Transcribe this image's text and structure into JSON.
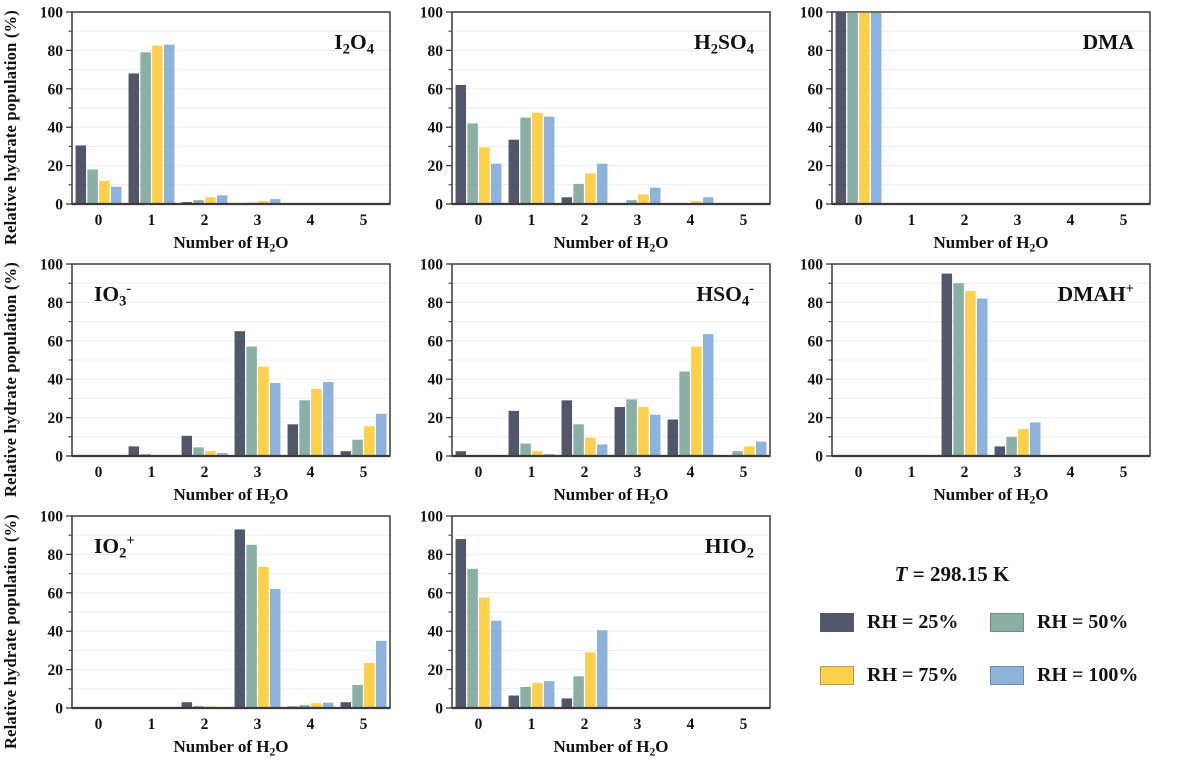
{
  "figure": {
    "ylabel": "Relative hydrate population (%)",
    "xlabel_parts": [
      {
        "t": "Number of H"
      },
      {
        "t": "2",
        "s": "sub"
      },
      {
        "t": "O"
      }
    ],
    "yticks": [
      0,
      20,
      40,
      60,
      80,
      100
    ],
    "grid_step": 10,
    "colors": {
      "rh25": "#52566A",
      "rh50": "#89AFA7",
      "rh75": "#FDD04A",
      "rh100": "#8DB2DC",
      "frame": "#3a3a3a",
      "grid": "#ededed"
    }
  },
  "legend": {
    "temperature_parts": [
      {
        "t": "T",
        "s": "i"
      },
      {
        "t": " = 298.15 K"
      }
    ],
    "entries": [
      {
        "label": "RH = 25%",
        "color": "#52566A"
      },
      {
        "label": "RH = 50%",
        "color": "#89AFA7"
      },
      {
        "label": "RH = 75%",
        "color": "#FDD04A"
      },
      {
        "label": "RH = 100%",
        "color": "#8DB2DC"
      }
    ]
  },
  "chart_data": [
    {
      "type": "bar",
      "name": "I2O4",
      "title_parts": [
        {
          "t": "I"
        },
        {
          "t": "2",
          "s": "sub"
        },
        {
          "t": "O"
        },
        {
          "t": "4",
          "s": "sub"
        }
      ],
      "title_pos": "right",
      "categories": [
        "0",
        "1",
        "2",
        "3",
        "4",
        "5"
      ],
      "xlabel": "Number of H2O",
      "ylabel": "Relative hydrate population (%)",
      "ylim": [
        0,
        100
      ],
      "series": [
        {
          "name": "RH = 25%",
          "values": [
            30.5,
            68,
            1,
            0.4,
            0,
            0
          ]
        },
        {
          "name": "RH = 50%",
          "values": [
            18,
            79,
            2,
            0.7,
            0,
            0
          ]
        },
        {
          "name": "RH = 75%",
          "values": [
            12,
            82.5,
            3.5,
            1.5,
            0,
            0
          ]
        },
        {
          "name": "RH = 100%",
          "values": [
            9,
            83,
            4.5,
            2.5,
            0,
            0
          ]
        }
      ]
    },
    {
      "type": "bar",
      "name": "H2SO4",
      "title_parts": [
        {
          "t": "H"
        },
        {
          "t": "2",
          "s": "sub"
        },
        {
          "t": "SO"
        },
        {
          "t": "4",
          "s": "sub"
        }
      ],
      "title_pos": "right",
      "categories": [
        "0",
        "1",
        "2",
        "3",
        "4",
        "5"
      ],
      "xlabel": "Number of H2O",
      "ylabel": "Relative hydrate population (%)",
      "ylim": [
        0,
        100
      ],
      "series": [
        {
          "name": "RH = 25%",
          "values": [
            62,
            33.5,
            3.5,
            0.3,
            0.3,
            0
          ]
        },
        {
          "name": "RH = 50%",
          "values": [
            42,
            45,
            10.5,
            2,
            0.5,
            0
          ]
        },
        {
          "name": "RH = 75%",
          "values": [
            29.5,
            47.5,
            16,
            5,
            1.5,
            0
          ]
        },
        {
          "name": "RH = 100%",
          "values": [
            21,
            45.5,
            21,
            8.5,
            3.5,
            0
          ]
        }
      ]
    },
    {
      "type": "bar",
      "name": "DMA",
      "title_parts": [
        {
          "t": "DMA"
        }
      ],
      "title_pos": "right",
      "categories": [
        "0",
        "1",
        "2",
        "3",
        "4",
        "5"
      ],
      "xlabel": "Number of H2O",
      "ylabel": "Relative hydrate population (%)",
      "ylim": [
        0,
        100
      ],
      "series": [
        {
          "name": "RH = 25%",
          "values": [
            100,
            0,
            0,
            0,
            0,
            0
          ]
        },
        {
          "name": "RH = 50%",
          "values": [
            99.8,
            0.2,
            0,
            0,
            0,
            0
          ]
        },
        {
          "name": "RH = 75%",
          "values": [
            99.7,
            0.3,
            0,
            0,
            0,
            0
          ]
        },
        {
          "name": "RH = 100%",
          "values": [
            99.5,
            0.5,
            0,
            0,
            0,
            0
          ]
        }
      ]
    },
    {
      "type": "bar",
      "name": "IO3-",
      "title_parts": [
        {
          "t": "IO"
        },
        {
          "t": "3",
          "s": "sub"
        },
        {
          "t": "-",
          "s": "sup"
        }
      ],
      "title_pos": "left",
      "categories": [
        "0",
        "1",
        "2",
        "3",
        "4",
        "5"
      ],
      "xlabel": "Number of H2O",
      "ylabel": "Relative hydrate population (%)",
      "ylim": [
        0,
        100
      ],
      "series": [
        {
          "name": "RH = 25%",
          "values": [
            0,
            5,
            10.5,
            65,
            16.5,
            2.5
          ]
        },
        {
          "name": "RH = 50%",
          "values": [
            0,
            1,
            4.5,
            57,
            29,
            8.5
          ]
        },
        {
          "name": "RH = 75%",
          "values": [
            0,
            0.3,
            2.5,
            46.5,
            35,
            15.5
          ]
        },
        {
          "name": "RH = 100%",
          "values": [
            0,
            0,
            1.5,
            38,
            38.5,
            22
          ]
        }
      ]
    },
    {
      "type": "bar",
      "name": "HSO4-",
      "title_parts": [
        {
          "t": "HSO"
        },
        {
          "t": "4",
          "s": "sub"
        },
        {
          "t": "-",
          "s": "sup"
        }
      ],
      "title_pos": "right",
      "categories": [
        "0",
        "1",
        "2",
        "3",
        "4",
        "5"
      ],
      "xlabel": "Number of H2O",
      "ylabel": "Relative hydrate population (%)",
      "ylim": [
        0,
        100
      ],
      "series": [
        {
          "name": "RH = 25%",
          "values": [
            2.5,
            23.5,
            29,
            25.5,
            19,
            0.5
          ]
        },
        {
          "name": "RH = 50%",
          "values": [
            0,
            6.5,
            16.5,
            29.5,
            44,
            2.5
          ]
        },
        {
          "name": "RH = 75%",
          "values": [
            0,
            2.5,
            9.5,
            25.5,
            57,
            5
          ]
        },
        {
          "name": "RH = 100%",
          "values": [
            0,
            1,
            6,
            21.5,
            63.5,
            7.5
          ]
        }
      ]
    },
    {
      "type": "bar",
      "name": "DMAH+",
      "title_parts": [
        {
          "t": "DMAH"
        },
        {
          "t": "+",
          "s": "sup"
        }
      ],
      "title_pos": "right",
      "categories": [
        "0",
        "1",
        "2",
        "3",
        "4",
        "5"
      ],
      "xlabel": "Number of H2O",
      "ylabel": "Relative hydrate population (%)",
      "ylim": [
        0,
        100
      ],
      "series": [
        {
          "name": "RH = 25%",
          "values": [
            0,
            0,
            95,
            5,
            0,
            0
          ]
        },
        {
          "name": "RH = 50%",
          "values": [
            0,
            0,
            90,
            10,
            0,
            0
          ]
        },
        {
          "name": "RH = 75%",
          "values": [
            0,
            0,
            86,
            14,
            0,
            0
          ]
        },
        {
          "name": "RH = 100%",
          "values": [
            0,
            0,
            82,
            17.5,
            0,
            0
          ]
        }
      ]
    },
    {
      "type": "bar",
      "name": "IO2+",
      "title_parts": [
        {
          "t": "IO"
        },
        {
          "t": "2",
          "s": "sub"
        },
        {
          "t": "+",
          "s": "sup"
        }
      ],
      "title_pos": "left",
      "categories": [
        "0",
        "1",
        "2",
        "3",
        "4",
        "5"
      ],
      "xlabel": "Number of H2O",
      "ylabel": "Relative hydrate population (%)",
      "ylim": [
        0,
        100
      ],
      "series": [
        {
          "name": "RH = 25%",
          "values": [
            0,
            0,
            3,
            93,
            0.8,
            3
          ]
        },
        {
          "name": "RH = 50%",
          "values": [
            0,
            0,
            1,
            85,
            1.5,
            12
          ]
        },
        {
          "name": "RH = 75%",
          "values": [
            0,
            0,
            0.8,
            73.5,
            2.5,
            23.5
          ]
        },
        {
          "name": "RH = 100%",
          "values": [
            0,
            0,
            0.3,
            62,
            2.8,
            35
          ]
        }
      ]
    },
    {
      "type": "bar",
      "name": "HIO2",
      "title_parts": [
        {
          "t": "HIO"
        },
        {
          "t": "2",
          "s": "sub"
        }
      ],
      "title_pos": "right",
      "categories": [
        "0",
        "1",
        "2",
        "3",
        "4",
        "5"
      ],
      "xlabel": "Number of H2O",
      "ylabel": "Relative hydrate population (%)",
      "ylim": [
        0,
        100
      ],
      "series": [
        {
          "name": "RH = 25%",
          "values": [
            88,
            6.5,
            5,
            0,
            0,
            0
          ]
        },
        {
          "name": "RH = 50%",
          "values": [
            72.5,
            11,
            16.5,
            0,
            0,
            0
          ]
        },
        {
          "name": "RH = 75%",
          "values": [
            57.5,
            13,
            29,
            0,
            0,
            0
          ]
        },
        {
          "name": "RH = 100%",
          "values": [
            45.5,
            14,
            40.5,
            0,
            0,
            0
          ]
        }
      ]
    }
  ]
}
